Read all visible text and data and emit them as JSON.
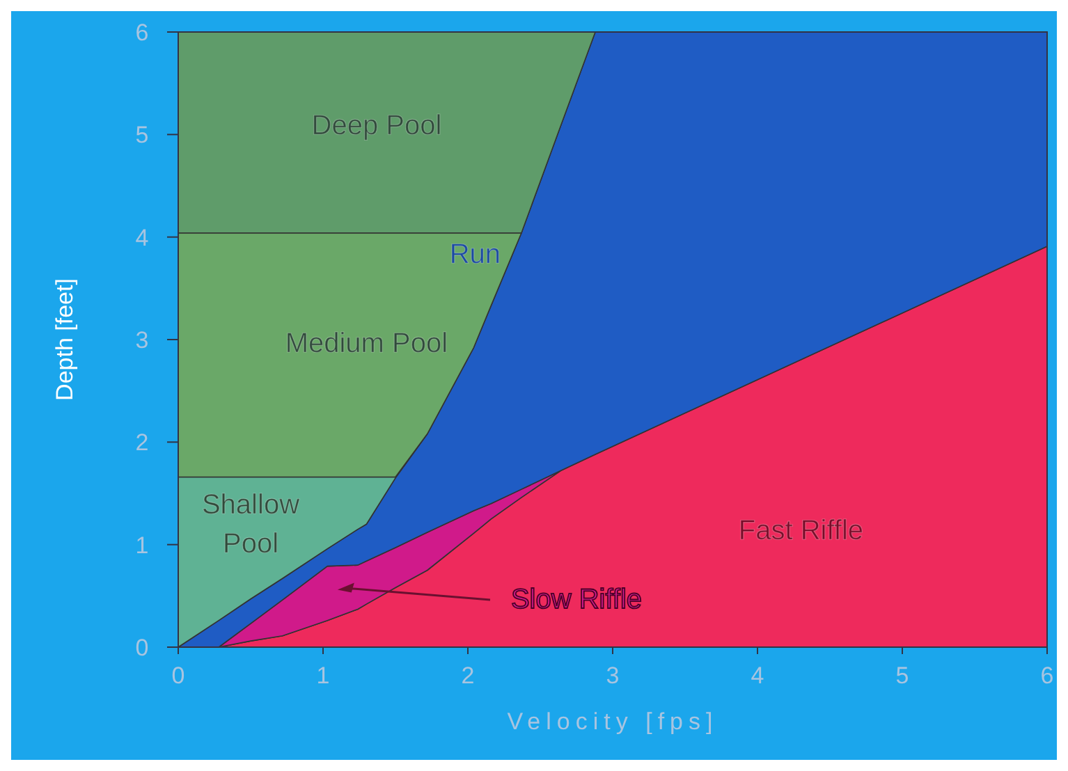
{
  "chart_data": {
    "type": "area",
    "stacked": true,
    "xlabel": "Velocity [fps]",
    "ylabel": "Depth [feet]",
    "x": [
      0,
      0.28,
      0.5,
      0.72,
      1.03,
      1.24,
      1.3,
      1.5,
      1.72,
      2.04,
      2.16,
      2.37,
      2.64,
      2.88,
      6
    ],
    "xlim": [
      0,
      6
    ],
    "xticks": [
      0,
      1,
      2,
      3,
      4,
      5,
      6
    ],
    "ylim": [
      0,
      6
    ],
    "yticks": [
      0,
      1,
      2,
      3,
      4,
      5,
      6
    ],
    "grid": false,
    "legend": false,
    "series": [
      {
        "name": "Fast Riffle",
        "color": "#ee2a5c",
        "values": [
          null,
          0,
          0.06,
          0.11,
          0.26,
          0.37,
          0.42,
          0.58,
          0.75,
          1.11,
          1.25,
          1.46,
          1.72,
          1.88,
          3.91
        ]
      },
      {
        "name": "Slow Riffle",
        "color": "#d01a8a",
        "values": [
          null,
          0,
          0.17,
          0.35,
          0.53,
          0.43,
          0.42,
          0.39,
          0.37,
          0.22,
          0.15,
          0.08,
          0,
          null,
          null
        ]
      },
      {
        "name": "Run",
        "color": "#1f5cc4",
        "values": [
          0,
          0.26,
          0.24,
          0.21,
          0.17,
          0.35,
          0.36,
          0.68,
          0.96,
          1.59,
          1.93,
          2.5,
          3.36,
          4.12,
          2.09
        ]
      },
      {
        "name": "Shallow Pool",
        "color": "#5fb294",
        "values": [
          1.66,
          1.4,
          1.19,
          0.99,
          0.7,
          0.51,
          0.46,
          0.01,
          0,
          null,
          null,
          null,
          null,
          null,
          null
        ]
      },
      {
        "name": "Medium Pool",
        "color": "#6aa868",
        "values": [
          2.38,
          2.38,
          2.38,
          2.38,
          2.38,
          2.38,
          2.38,
          2.38,
          1.96,
          1.12,
          0.71,
          0,
          null,
          null,
          null
        ]
      },
      {
        "name": "Deep Pool",
        "color": "#5f9c6a",
        "values": [
          1.96,
          1.96,
          1.96,
          1.96,
          1.96,
          1.96,
          1.96,
          1.96,
          1.96,
          1.96,
          1.96,
          1.96,
          0.92,
          0,
          null
        ]
      }
    ]
  }
}
